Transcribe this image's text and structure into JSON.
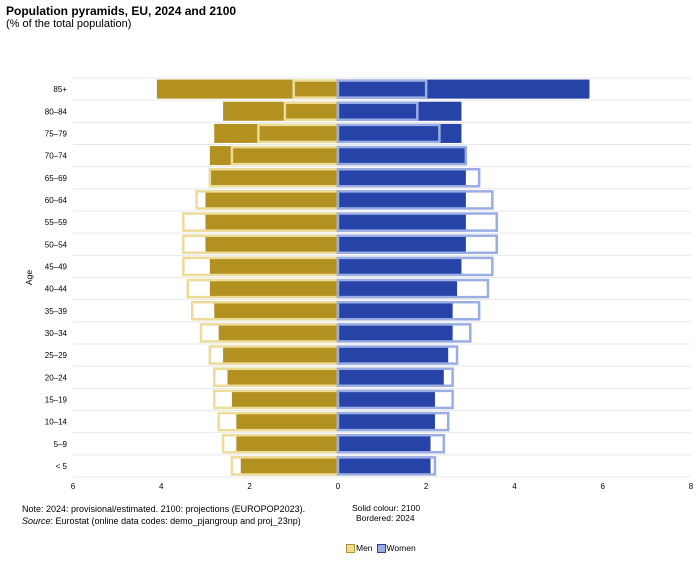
{
  "title": "Population pyramids, EU, 2024 and 2100",
  "subtitle": "(% of the total population)",
  "note_line": "Note: 2024: provisional/estimated. 2100: projections (EUROPOP2023).",
  "source_label": "Source",
  "source_text": ": Eurostat (online data codes: demo_pjangroup and proj_23np)",
  "encoding": {
    "solid": "Solid colour: 2100",
    "bordered": "Bordered: 2024"
  },
  "legend": {
    "men": "Men",
    "women": "Women"
  },
  "colors": {
    "men_solid": "#b39120",
    "men_border": "#ecdc97",
    "women_solid": "#2643a8",
    "women_border": "#9aaee3",
    "grid": "#e8e8e8"
  },
  "chart_data": {
    "type": "bar",
    "orientation": "horizontal-pyramid",
    "ylabel": "Age",
    "xlim": [
      -6,
      8
    ],
    "x_ticks": [
      "6",
      "4",
      "2",
      "0",
      "2",
      "4",
      "6",
      "8"
    ],
    "categories": [
      "85+",
      "80–84",
      "75–79",
      "70–74",
      "65–69",
      "60–64",
      "55–59",
      "50–54",
      "45–49",
      "40–44",
      "35–39",
      "30–34",
      "25–29",
      "20–24",
      "15–19",
      "10–14",
      "5–9",
      "< 5"
    ],
    "series": [
      {
        "name": "Men",
        "year": "2100",
        "style": "solid",
        "values": [
          4.1,
          2.6,
          2.8,
          2.9,
          2.9,
          3.0,
          3.0,
          3.0,
          2.9,
          2.9,
          2.8,
          2.7,
          2.6,
          2.5,
          2.4,
          2.3,
          2.3,
          2.2
        ]
      },
      {
        "name": "Women",
        "year": "2100",
        "style": "solid",
        "values": [
          5.7,
          2.8,
          2.8,
          2.9,
          2.9,
          2.9,
          2.9,
          2.9,
          2.8,
          2.7,
          2.6,
          2.6,
          2.5,
          2.4,
          2.2,
          2.2,
          2.1,
          2.1
        ]
      },
      {
        "name": "Men",
        "year": "2024",
        "style": "bordered",
        "values": [
          1.0,
          1.2,
          1.8,
          2.4,
          2.9,
          3.2,
          3.5,
          3.5,
          3.5,
          3.4,
          3.3,
          3.1,
          2.9,
          2.8,
          2.8,
          2.7,
          2.6,
          2.4
        ]
      },
      {
        "name": "Women",
        "year": "2024",
        "style": "bordered",
        "values": [
          2.0,
          1.8,
          2.3,
          2.9,
          3.2,
          3.5,
          3.6,
          3.6,
          3.5,
          3.4,
          3.2,
          3.0,
          2.7,
          2.6,
          2.6,
          2.5,
          2.4,
          2.2
        ]
      }
    ],
    "grid": true,
    "legend_position": "bottom"
  }
}
